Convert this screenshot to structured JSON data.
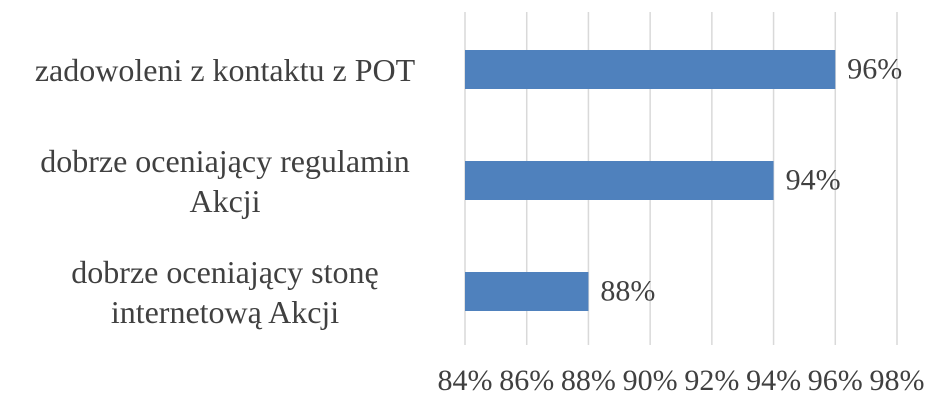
{
  "chart_data": {
    "type": "bar",
    "orientation": "horizontal",
    "categories": [
      "zadowoleni z kontaktu z POT",
      "dobrze oceniający regulamin Akcji",
      "dobrze oceniający stonę internetową Akcji"
    ],
    "values": [
      96,
      94,
      88
    ],
    "value_labels": [
      "96%",
      "94%",
      "88%"
    ],
    "color": "#4f81bd",
    "xlim": [
      84,
      98
    ],
    "xticks": [
      {
        "value": 84,
        "label": "84%"
      },
      {
        "value": 86,
        "label": "86%"
      },
      {
        "value": 88,
        "label": "88%"
      },
      {
        "value": 90,
        "label": "90%"
      },
      {
        "value": 92,
        "label": "92%"
      },
      {
        "value": 94,
        "label": "94%"
      },
      {
        "value": 96,
        "label": "96%"
      },
      {
        "value": 98,
        "label": "98%"
      }
    ],
    "grid": true
  }
}
